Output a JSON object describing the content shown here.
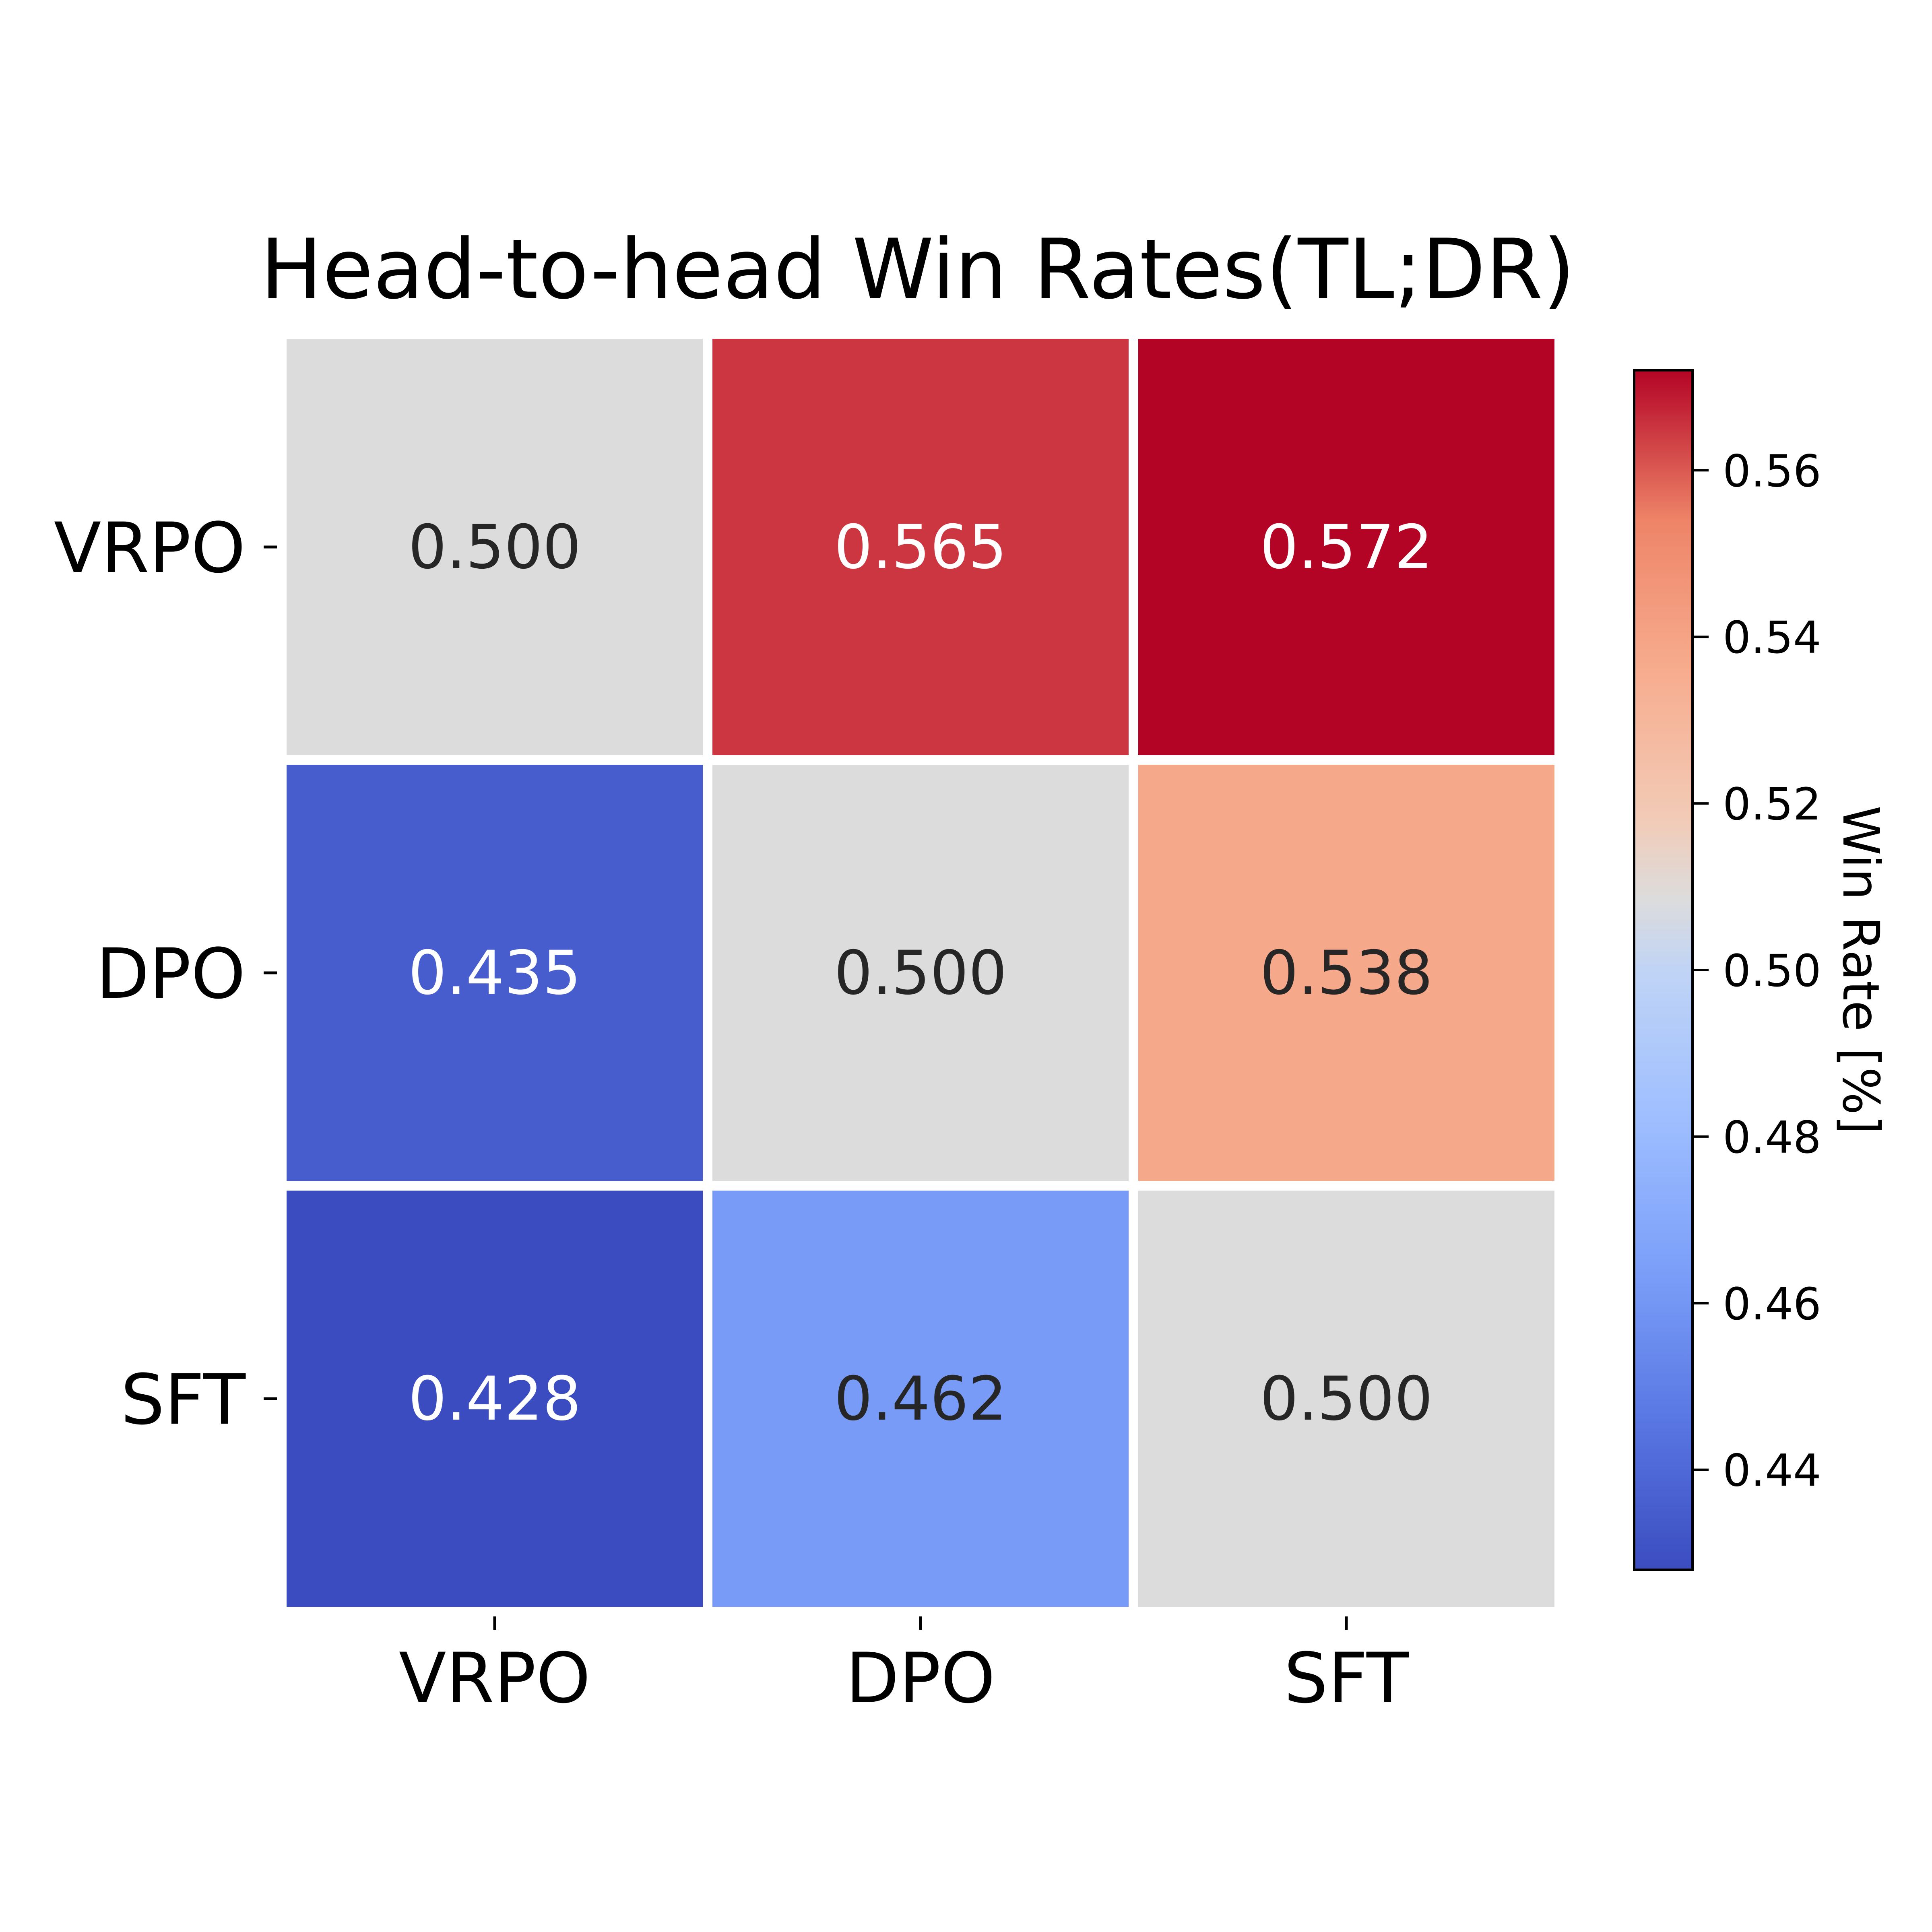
{
  "chart_data": {
    "type": "heatmap",
    "title": "Head-to-head Win Rates(TL;DR)",
    "rows": [
      "VRPO",
      "DPO",
      "SFT"
    ],
    "cols": [
      "VRPO",
      "DPO",
      "SFT"
    ],
    "values": [
      [
        0.5,
        0.565,
        0.572
      ],
      [
        0.435,
        0.5,
        0.538
      ],
      [
        0.428,
        0.462,
        0.5
      ]
    ],
    "cell_labels": [
      [
        "0.500",
        "0.565",
        "0.572"
      ],
      [
        "0.435",
        "0.500",
        "0.538"
      ],
      [
        "0.428",
        "0.462",
        "0.500"
      ]
    ],
    "colormap": "coolwarm",
    "colorbar": {
      "label": "Win Rate [%]",
      "range": [
        0.428,
        0.572
      ],
      "ticks": [
        0.44,
        0.46,
        0.48,
        0.5,
        0.52,
        0.54,
        0.56
      ],
      "tick_labels": [
        "0.44",
        "0.46",
        "0.48",
        "0.50",
        "0.52",
        "0.54",
        "0.56"
      ]
    },
    "colors": {
      "cell_separator": "#ffffff",
      "dark_text": "#262626",
      "light_text": "#ffffff"
    }
  }
}
